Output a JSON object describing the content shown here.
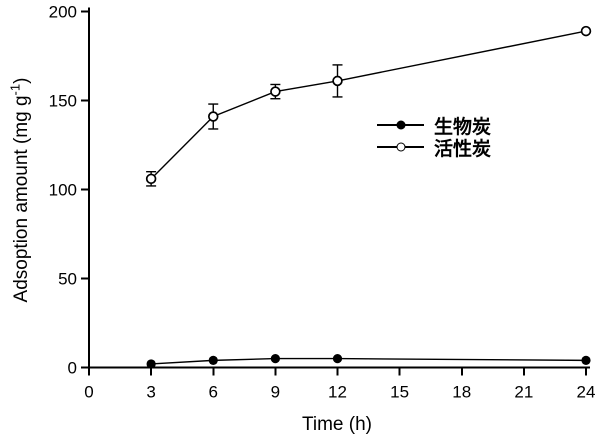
{
  "chart_data": {
    "type": "line",
    "title": "",
    "xlabel": "Time (h)",
    "ylabel": "Adsoption amount (mg g⁻¹)",
    "ylabel_parts": {
      "pre": "Adsoption amount (mg g",
      "sup": "-1",
      "post": ")"
    },
    "xlim": [
      0,
      24
    ],
    "ylim": [
      0,
      200
    ],
    "xticks": [
      0,
      3,
      6,
      9,
      12,
      15,
      18,
      21,
      24
    ],
    "yticks": [
      0,
      50,
      100,
      150,
      200
    ],
    "x": [
      3,
      6,
      9,
      12,
      24
    ],
    "series": [
      {
        "name": "生物炭",
        "marker": "filled-circle",
        "color": "#000000",
        "values": [
          2,
          4,
          5,
          5,
          4
        ],
        "errors": [
          0,
          0,
          0,
          0,
          0
        ]
      },
      {
        "name": "活性炭",
        "marker": "open-circle",
        "color": "#000000",
        "values": [
          106,
          141,
          155,
          161,
          189
        ],
        "errors": [
          4,
          7,
          4,
          9,
          0
        ]
      }
    ],
    "legend_position": "middle-right",
    "grid": false,
    "colors": {
      "axis": "#000000",
      "background": "#ffffff"
    }
  }
}
